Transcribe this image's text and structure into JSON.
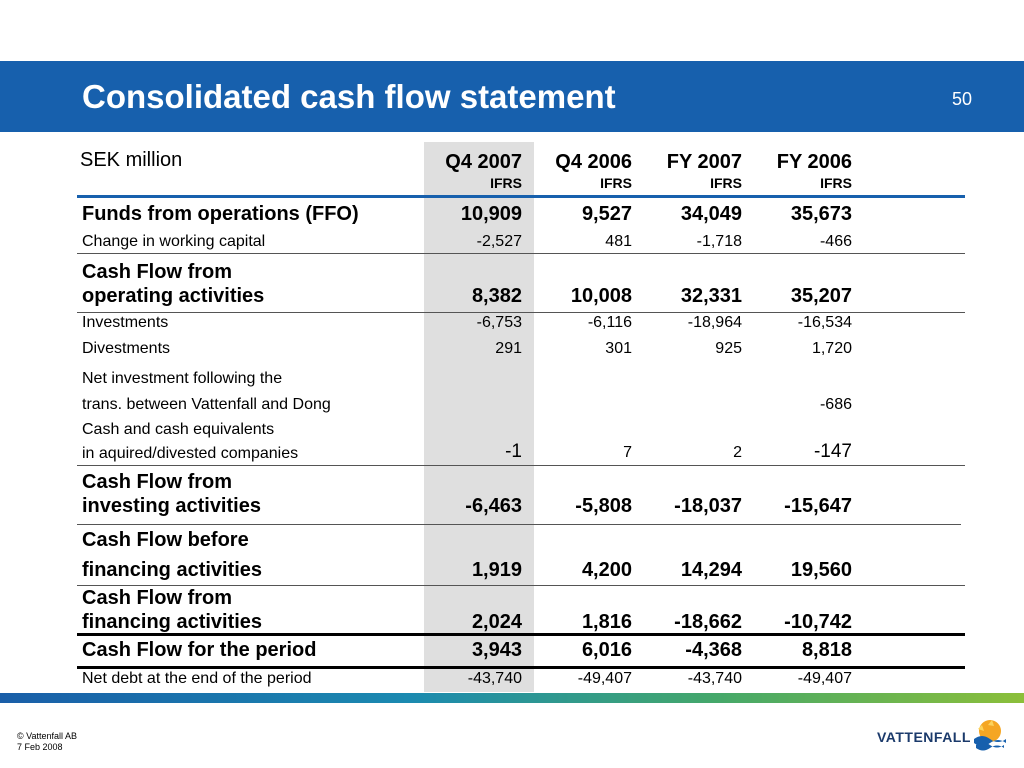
{
  "slide": {
    "title": "Consolidated cash flow statement",
    "page_number": "50"
  },
  "table": {
    "unit_label": "SEK million",
    "columns": [
      {
        "label": "Q4 2007",
        "sub": "IFRS"
      },
      {
        "label": "Q4 2006",
        "sub": "IFRS"
      },
      {
        "label": "FY 2007",
        "sub": "IFRS"
      },
      {
        "label": "FY 2006",
        "sub": "IFRS"
      }
    ],
    "rows": [
      {
        "label": "Funds from operations (FFO)",
        "values": [
          "10,909",
          "9,527",
          "34,049",
          "35,673"
        ],
        "bold": true
      },
      {
        "label": "Change in working capital",
        "values": [
          "-2,527",
          "481",
          "-1,718",
          "-466"
        ],
        "bold": false
      },
      {
        "label_line1": "Cash Flow from",
        "label_line2": "operating activities",
        "values": [
          "8,382",
          "10,008",
          "32,331",
          "35,207"
        ],
        "bold": true
      },
      {
        "label": "Investments",
        "values": [
          "-6,753",
          "-6,116",
          "-18,964",
          "-16,534"
        ],
        "bold": false
      },
      {
        "label": "Divestments",
        "values": [
          "291",
          "301",
          "925",
          "1,720"
        ],
        "bold": false
      },
      {
        "label_line1": "Net investment following the",
        "label_line2": "trans. between Vattenfall and Dong",
        "values": [
          "",
          "",
          "",
          "-686"
        ],
        "bold": false
      },
      {
        "label_line1": "Cash and cash equivalents",
        "label_line2": "in aquired/divested companies",
        "values": [
          "-1",
          "7",
          "2",
          "-147"
        ],
        "bold": false
      },
      {
        "label_line1": "Cash Flow from",
        "label_line2": "investing activities",
        "values": [
          "-6,463",
          "-5,808",
          "-18,037",
          "-15,647"
        ],
        "bold": true
      },
      {
        "label_line1": "Cash Flow before",
        "label_line2": "financing activities",
        "values": [
          "1,919",
          "4,200",
          "14,294",
          "19,560"
        ],
        "bold": true
      },
      {
        "label_line1": "Cash Flow from",
        "label_line2": "financing activities",
        "values": [
          "2,024",
          "1,816",
          "-18,662",
          "-10,742"
        ],
        "bold": true
      },
      {
        "label": "Cash Flow for the period",
        "values": [
          "3,943",
          "6,016",
          "-4,368",
          "8,818"
        ],
        "bold": true
      },
      {
        "label": "Net debt at the end of the period",
        "values": [
          "-43,740",
          "-49,407",
          "-43,740",
          "-49,407"
        ],
        "bold": false
      }
    ]
  },
  "footer": {
    "copyright": "© Vattenfall AB",
    "date": "7 Feb 2008"
  },
  "brand": {
    "logo_text": "VATTENFALL",
    "logo_icon": "vattenfall-sun-wave-icon",
    "primary_color": "#1760ad",
    "shade_color": "#dfdfdf"
  }
}
